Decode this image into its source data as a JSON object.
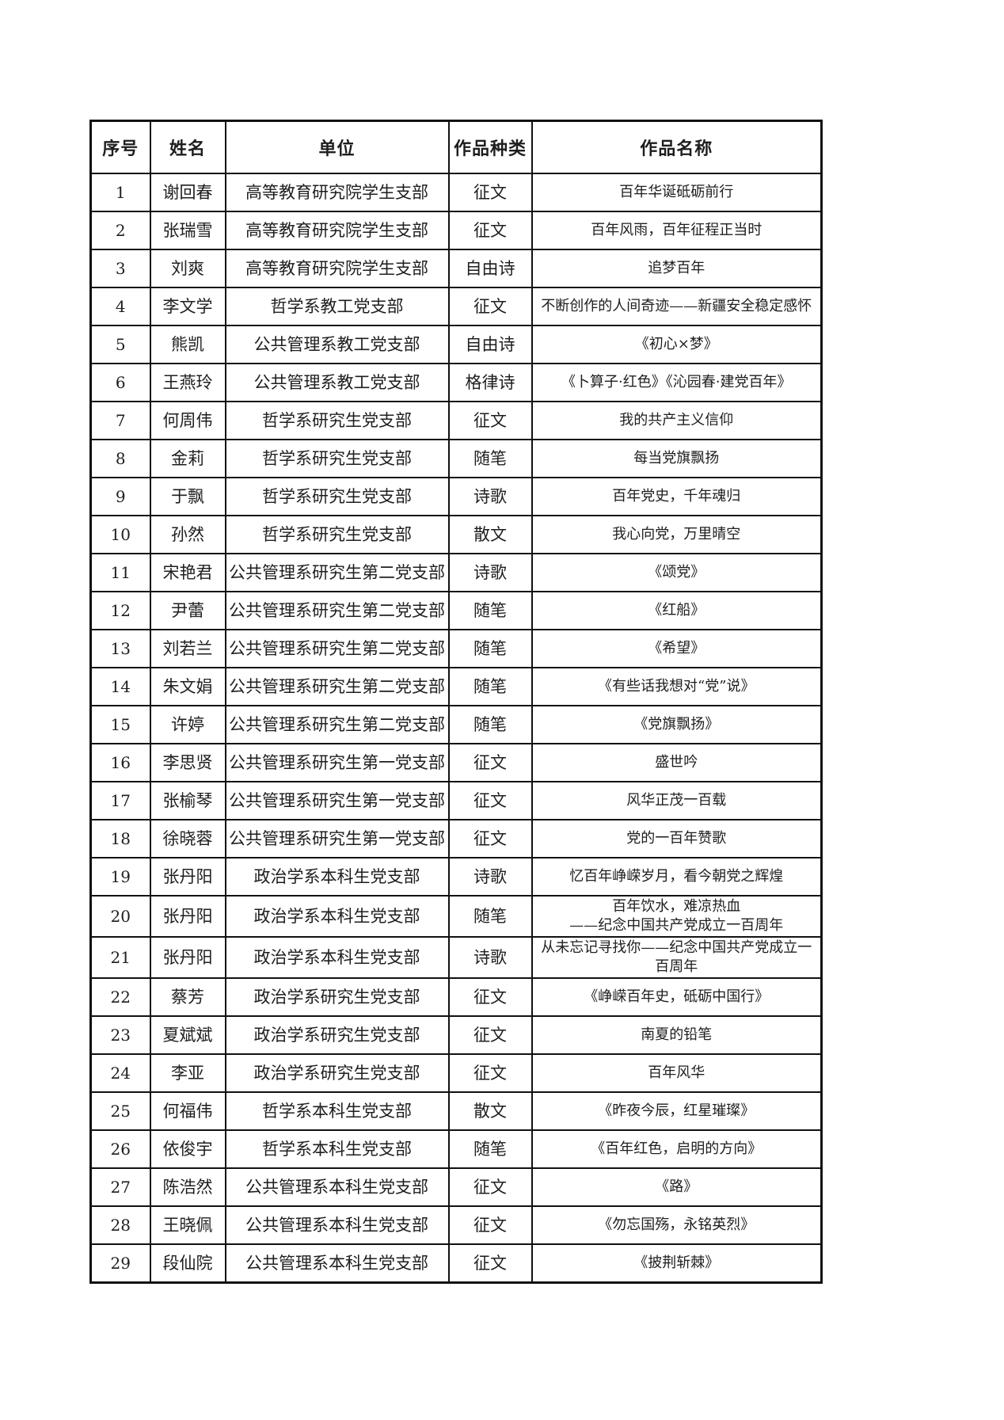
{
  "page": {
    "background_color": "#ffffff",
    "border_color": "#111111",
    "text_color": "#1e1e1e"
  },
  "table": {
    "columns": [
      {
        "key": "no",
        "label": "序号"
      },
      {
        "key": "name",
        "label": "姓名"
      },
      {
        "key": "unit",
        "label": "单位"
      },
      {
        "key": "type",
        "label": "作品种类"
      },
      {
        "key": "title",
        "label": "作品名称"
      }
    ],
    "rows": [
      {
        "no": "1",
        "name": "谢回春",
        "unit": "高等教育研究院学生支部",
        "type": "征文",
        "title": "百年华诞砥砺前行"
      },
      {
        "no": "2",
        "name": "张瑞雪",
        "unit": "高等教育研究院学生支部",
        "type": "征文",
        "title": "百年风雨，百年征程正当时"
      },
      {
        "no": "3",
        "name": "刘爽",
        "unit": "高等教育研究院学生支部",
        "type": "自由诗",
        "title": "追梦百年"
      },
      {
        "no": "4",
        "name": "李文学",
        "unit": "哲学系教工党支部",
        "type": "征文",
        "title": "不断创作的人间奇迹——新疆安全稳定感怀"
      },
      {
        "no": "5",
        "name": "熊凯",
        "unit": "公共管理系教工党支部",
        "type": "自由诗",
        "title": "《初心×梦》"
      },
      {
        "no": "6",
        "name": "王燕玲",
        "unit": "公共管理系教工党支部",
        "type": "格律诗",
        "title": "《卜算子·红色》《沁园春·建党百年》"
      },
      {
        "no": "7",
        "name": "何周伟",
        "unit": "哲学系研究生党支部",
        "type": "征文",
        "title": "我的共产主义信仰"
      },
      {
        "no": "8",
        "name": "金莉",
        "unit": "哲学系研究生党支部",
        "type": "随笔",
        "title": "每当党旗飘扬"
      },
      {
        "no": "9",
        "name": "于飘",
        "unit": "哲学系研究生党支部",
        "type": "诗歌",
        "title": "百年党史，千年魂归"
      },
      {
        "no": "10",
        "name": "孙然",
        "unit": "哲学系研究生党支部",
        "type": "散文",
        "title": "我心向党，万里晴空"
      },
      {
        "no": "11",
        "name": "宋艳君",
        "unit": "公共管理系研究生第二党支部",
        "type": "诗歌",
        "title": "《颂党》"
      },
      {
        "no": "12",
        "name": "尹蕾",
        "unit": "公共管理系研究生第二党支部",
        "type": "随笔",
        "title": "《红船》"
      },
      {
        "no": "13",
        "name": "刘若兰",
        "unit": "公共管理系研究生第二党支部",
        "type": "随笔",
        "title": "《希望》"
      },
      {
        "no": "14",
        "name": "朱文娟",
        "unit": "公共管理系研究生第二党支部",
        "type": "随笔",
        "title": "《有些话我想对“党”说》"
      },
      {
        "no": "15",
        "name": "许婷",
        "unit": "公共管理系研究生第二党支部",
        "type": "随笔",
        "title": "《党旗飘扬》"
      },
      {
        "no": "16",
        "name": "李思贤",
        "unit": "公共管理系研究生第一党支部",
        "type": "征文",
        "title": "盛世吟"
      },
      {
        "no": "17",
        "name": "张榆琴",
        "unit": "公共管理系研究生第一党支部",
        "type": "征文",
        "title": "风华正茂一百载"
      },
      {
        "no": "18",
        "name": "徐晓蓉",
        "unit": "公共管理系研究生第一党支部",
        "type": "征文",
        "title": "党的一百年赞歌"
      },
      {
        "no": "19",
        "name": "张丹阳",
        "unit": "政治学系本科生党支部",
        "type": "诗歌",
        "title": "忆百年峥嵘岁月，看今朝党之辉煌"
      },
      {
        "no": "20",
        "name": "张丹阳",
        "unit": "政治学系本科生党支部",
        "type": "随笔",
        "title": "百年饮水，难凉热血\n——纪念中国共产党成立一百周年"
      },
      {
        "no": "21",
        "name": "张丹阳",
        "unit": "政治学系本科生党支部",
        "type": "诗歌",
        "title": "从未忘记寻找你——纪念中国共产党成立一百周年"
      },
      {
        "no": "22",
        "name": "蔡芳",
        "unit": "政治学系研究生党支部",
        "type": "征文",
        "title": "《峥嵘百年史，砥砺中国行》"
      },
      {
        "no": "23",
        "name": "夏斌斌",
        "unit": "政治学系研究生党支部",
        "type": "征文",
        "title": "南夏的铅笔"
      },
      {
        "no": "24",
        "name": "李亚",
        "unit": "政治学系研究生党支部",
        "type": "征文",
        "title": "百年风华"
      },
      {
        "no": "25",
        "name": "何福伟",
        "unit": "哲学系本科生党支部",
        "type": "散文",
        "title": "《昨夜今辰，红星璀璨》"
      },
      {
        "no": "26",
        "name": "依俊宇",
        "unit": "哲学系本科生党支部",
        "type": "随笔",
        "title": "《百年红色，启明的方向》"
      },
      {
        "no": "27",
        "name": "陈浩然",
        "unit": "公共管理系本科生党支部",
        "type": "征文",
        "title": "《路》"
      },
      {
        "no": "28",
        "name": "王晓佩",
        "unit": "公共管理系本科生党支部",
        "type": "征文",
        "title": "《勿忘国殇，永铭英烈》"
      },
      {
        "no": "29",
        "name": "段仙院",
        "unit": "公共管理系本科生党支部",
        "type": "征文",
        "title": "《披荆斩棘》"
      }
    ]
  }
}
